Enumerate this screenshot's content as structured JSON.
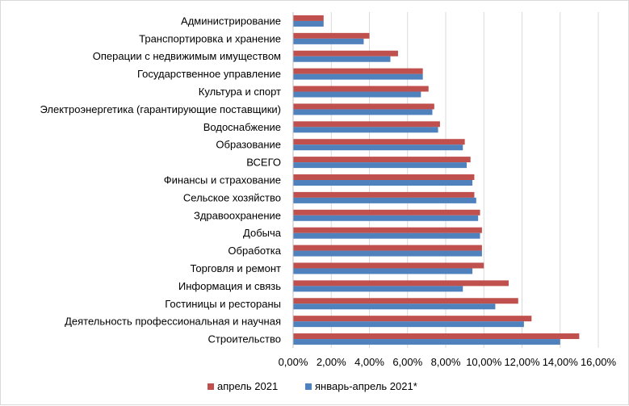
{
  "chart_data": {
    "type": "bar",
    "orientation": "horizontal",
    "categories": [
      "Администрирование",
      "Транспортировка и хранение",
      "Операции с недвижимым имуществом",
      "Государственное управление",
      "Культура и спорт",
      "Электроэнергетика (гарантирующие поставщики)",
      "Водоснабжение",
      "Образование",
      "ВСЕГО",
      "Финансы и страхование",
      "Сельское хозяйство",
      "Здравоохранение",
      "Добыча",
      "Обработка",
      "Торговля и ремонт",
      "Информация и связь",
      "Гостиницы и рестораны",
      "Деятельность профессиональная и научная",
      "Строительство"
    ],
    "series": [
      {
        "name": "апрель 2021",
        "color": "#c0504d",
        "values": [
          1.6,
          4.0,
          5.5,
          6.8,
          7.1,
          7.4,
          7.7,
          9.0,
          9.3,
          9.5,
          9.5,
          9.8,
          9.9,
          9.9,
          10.0,
          11.3,
          11.8,
          12.5,
          15.0
        ]
      },
      {
        "name": "январь-апрель 2021*",
        "color": "#4f81bd",
        "values": [
          1.6,
          3.7,
          5.1,
          6.8,
          6.7,
          7.3,
          7.6,
          8.9,
          9.1,
          9.4,
          9.6,
          9.7,
          9.8,
          9.9,
          9.4,
          8.9,
          10.6,
          12.1,
          14.0
        ]
      }
    ],
    "xlim": [
      0,
      16
    ],
    "xticks": [
      "0,00%",
      "2,00%",
      "4,00%",
      "6,00%",
      "8,00%",
      "10,00%",
      "12,00%",
      "14,00%",
      "16,00%"
    ],
    "grid": true,
    "legend_position": "bottom",
    "title": "",
    "xlabel": "",
    "ylabel": ""
  }
}
